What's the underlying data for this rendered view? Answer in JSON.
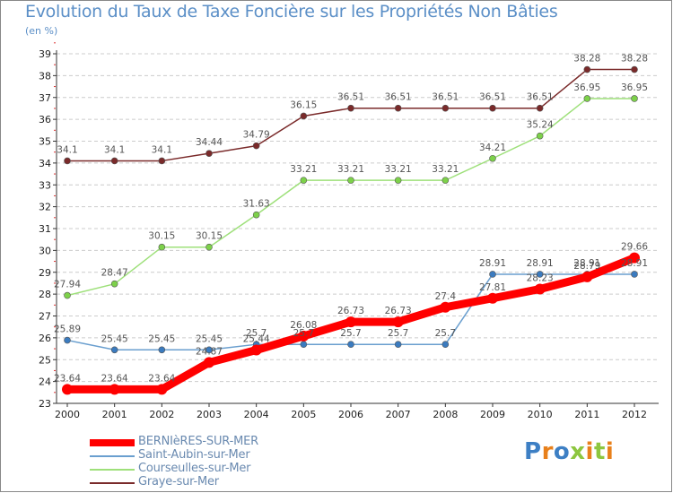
{
  "header": {
    "title": "Evolution du Taux de Taxe Foncière sur les Propriétés Non Bâties",
    "unit": "(en %)"
  },
  "logo": {
    "text": "Proxiti",
    "letter_colors": [
      "#3d7fc4",
      "#e8801b",
      "#3d7fc4",
      "#8dc63f",
      "#e8801b",
      "#8dc63f",
      "#e8801b"
    ]
  },
  "colors": {
    "axis": "#333333",
    "grid": "#cccccc",
    "frame": "#888888",
    "tick_text": "#222222",
    "label_text": "#555555"
  },
  "chart_data": {
    "type": "line",
    "title": "Evolution du Taux de Taxe Foncière sur les Propriétés Non Bâties",
    "ylabel": "(en %)",
    "xlabel": "",
    "x": [
      "2000",
      "2001",
      "2002",
      "2003",
      "2004",
      "2005",
      "2006",
      "2007",
      "2008",
      "2009",
      "2010",
      "2011",
      "2012"
    ],
    "ylim": [
      23,
      39
    ],
    "yticks": [
      23,
      24,
      25,
      26,
      27,
      28,
      29,
      30,
      31,
      32,
      33,
      34,
      35,
      36,
      37,
      38,
      39
    ],
    "grid": "horizontal dashed",
    "legend_position": "bottom-left",
    "series": [
      {
        "name": "BERNIèRES-SUR-MER",
        "color": "#ff0000",
        "marker_color": "#ff0000",
        "emphasis": true,
        "values": [
          23.64,
          23.64,
          23.64,
          24.87,
          25.44,
          26.08,
          26.73,
          26.73,
          27.4,
          27.81,
          28.23,
          28.79,
          29.66
        ],
        "labels": [
          "23.64",
          "23.64",
          "23.64",
          "24.87",
          "25.44",
          "26.08",
          "26.73",
          "26.73",
          "27.4",
          "27.81",
          "28.23",
          "28.79",
          "29.66"
        ]
      },
      {
        "name": "Saint-Aubin-sur-Mer",
        "color": "#6a9fcf",
        "marker_color": "#3b7bbf",
        "emphasis": false,
        "values": [
          25.89,
          25.45,
          25.45,
          25.45,
          25.7,
          25.7,
          25.7,
          25.7,
          25.7,
          28.91,
          28.91,
          28.91,
          28.91
        ],
        "labels": [
          "25.89",
          "25.45",
          "25.45",
          "25.45",
          "25.7",
          "25.7",
          "25.7",
          "25.7",
          "25.7",
          "28.91",
          "28.91",
          "28.91",
          "28.91"
        ]
      },
      {
        "name": "Courseulles-sur-Mer",
        "color": "#9ee07a",
        "marker_color": "#7dd14a",
        "emphasis": false,
        "values": [
          27.94,
          28.47,
          30.15,
          30.15,
          31.63,
          33.21,
          33.21,
          33.21,
          33.21,
          34.21,
          35.24,
          36.95,
          36.95
        ],
        "labels": [
          "27.94",
          "28.47",
          "30.15",
          "30.15",
          "31.63",
          "33.21",
          "33.21",
          "33.21",
          "33.21",
          "34.21",
          "35.24",
          "36.95",
          "36.95"
        ]
      },
      {
        "name": "Graye-sur-Mer",
        "color": "#7a2a2a",
        "marker_color": "#7a2a2a",
        "emphasis": false,
        "values": [
          34.1,
          34.1,
          34.1,
          34.44,
          34.79,
          36.15,
          36.51,
          36.51,
          36.51,
          36.51,
          36.51,
          38.28,
          38.28
        ],
        "labels": [
          "34.1",
          "34.1",
          "34.1",
          "34.44",
          "34.79",
          "36.15",
          "36.51",
          "36.51",
          "36.51",
          "36.51",
          "36.51",
          "38.28",
          "38.28"
        ]
      }
    ]
  }
}
